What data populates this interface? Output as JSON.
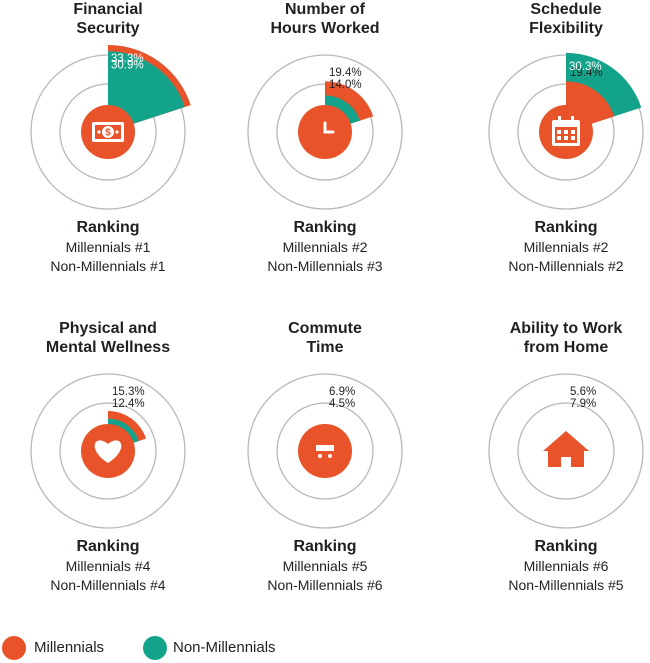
{
  "colors": {
    "millennials": "#e8532a",
    "non_millennials": "#13a38a",
    "ring": "#b8b8b8",
    "text": "#231f20"
  },
  "legend": [
    {
      "label": "Millennials",
      "color": "#e8532a"
    },
    {
      "label": "Non-Millennials",
      "color": "#13a38a"
    }
  ],
  "ranking_heading": "Ranking",
  "chart_data": [
    {
      "type": "polar-area",
      "title": [
        "Financial",
        "Security"
      ],
      "icon": "money-icon",
      "series": [
        {
          "name": "Millennials",
          "value": 33.3,
          "label": "33.3%"
        },
        {
          "name": "Non-Millennials",
          "value": 30.9,
          "label": "30.9%"
        }
      ],
      "ranking": [
        "Millennials #1",
        "Non-Millennials #1"
      ]
    },
    {
      "type": "polar-area",
      "title": [
        "Number of",
        "Hours Worked"
      ],
      "icon": "clock-icon",
      "series": [
        {
          "name": "Millennials",
          "value": 19.4,
          "label": "19.4%"
        },
        {
          "name": "Non-Millennials",
          "value": 14.0,
          "label": "14.0%"
        }
      ],
      "ranking": [
        "Millennials #2",
        "Non-Millennials #3"
      ]
    },
    {
      "type": "polar-area",
      "title": [
        "Schedule",
        "Flexibility"
      ],
      "icon": "calendar-icon",
      "series": [
        {
          "name": "Millennials",
          "value": 19.4,
          "label": "19.4%"
        },
        {
          "name": "Non-Millennials",
          "value": 30.3,
          "label": "30.3%"
        }
      ],
      "ranking": [
        "Millennials #2",
        "Non-Millennials #2"
      ]
    },
    {
      "type": "polar-area",
      "title": [
        "Physical and",
        "Mental Wellness"
      ],
      "icon": "heart-icon",
      "series": [
        {
          "name": "Millennials",
          "value": 15.3,
          "label": "15.3%"
        },
        {
          "name": "Non-Millennials",
          "value": 12.4,
          "label": "12.4%"
        }
      ],
      "ranking": [
        "Millennials #4",
        "Non-Millennials #4"
      ]
    },
    {
      "type": "polar-area",
      "title": [
        "Commute",
        "Time"
      ],
      "icon": "bus-icon",
      "series": [
        {
          "name": "Millennials",
          "value": 6.9,
          "label": "6.9%"
        },
        {
          "name": "Non-Millennials",
          "value": 4.5,
          "label": "4.5%"
        }
      ],
      "ranking": [
        "Millennials #5",
        "Non-Millennials #6"
      ]
    },
    {
      "type": "polar-area",
      "title": [
        "Ability to Work",
        "from Home"
      ],
      "icon": "house-icon",
      "series": [
        {
          "name": "Millennials",
          "value": 5.6,
          "label": "5.6%"
        },
        {
          "name": "Non-Millennials",
          "value": 7.9,
          "label": "7.9%"
        }
      ],
      "ranking": [
        "Millennials #6",
        "Non-Millennials #5"
      ]
    }
  ]
}
